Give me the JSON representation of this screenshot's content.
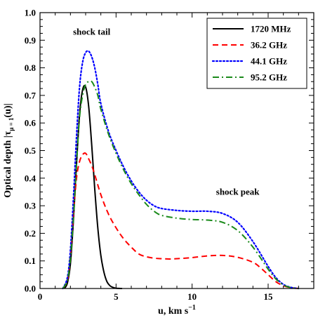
{
  "chart_data": {
    "type": "line",
    "xlabel": "u, km s",
    "xlabel_sup": "−1",
    "ylabel": "Optical depth |τ",
    "ylabel_sub": "μ = 1",
    "ylabel_tail": "(u)|",
    "xlim": [
      0,
      18
    ],
    "ylim": [
      0,
      1.0
    ],
    "x_ticks": [
      0,
      5,
      10,
      15
    ],
    "x_tick_labels": [
      "0",
      "5",
      "10",
      "15"
    ],
    "y_ticks": [
      0.0,
      0.1,
      0.2,
      0.3,
      0.4,
      0.5,
      0.6,
      0.7,
      0.8,
      0.9,
      1.0
    ],
    "y_tick_labels": [
      "0.0",
      "0.1",
      "0.2",
      "0.3",
      "0.4",
      "0.5",
      "0.6",
      "0.7",
      "0.8",
      "0.9",
      "1.0"
    ],
    "grid": false,
    "legend_position": "top-right",
    "annotations": [
      {
        "text": "shock tail",
        "x": 3.4,
        "y": 0.93
      },
      {
        "text": "shock peak",
        "x": 13.0,
        "y": 0.35
      }
    ],
    "series": [
      {
        "name": "1720 MHz",
        "color": "#000000",
        "style": "solid",
        "x": [
          1.6,
          1.8,
          2.0,
          2.2,
          2.4,
          2.6,
          2.8,
          3.0,
          3.2,
          3.4,
          3.6,
          3.8,
          4.0,
          4.2,
          4.4,
          4.6,
          4.8,
          5.0,
          5.4
        ],
        "y": [
          0.0,
          0.02,
          0.09,
          0.25,
          0.45,
          0.63,
          0.72,
          0.73,
          0.66,
          0.52,
          0.36,
          0.22,
          0.12,
          0.06,
          0.025,
          0.01,
          0.004,
          0.001,
          0.0
        ]
      },
      {
        "name": "36.2 GHz",
        "color": "#ff0000",
        "style": "dashed",
        "x": [
          1.5,
          1.8,
          2.0,
          2.2,
          2.4,
          2.6,
          2.8,
          3.0,
          3.2,
          3.5,
          4.0,
          4.5,
          5.0,
          5.5,
          6.0,
          6.5,
          7.0,
          7.5,
          8.0,
          8.5,
          9.0,
          10.0,
          11.0,
          12.0,
          13.0,
          14.0,
          14.5,
          15.0,
          15.5,
          16.0,
          16.5,
          17.0
        ],
        "y": [
          0.0,
          0.03,
          0.12,
          0.27,
          0.4,
          0.46,
          0.485,
          0.49,
          0.47,
          0.43,
          0.34,
          0.27,
          0.22,
          0.18,
          0.15,
          0.125,
          0.115,
          0.11,
          0.108,
          0.107,
          0.108,
          0.112,
          0.118,
          0.12,
          0.113,
          0.095,
          0.075,
          0.05,
          0.025,
          0.01,
          0.003,
          0.0
        ]
      },
      {
        "name": "44.1 GHz",
        "color": "#0000ff",
        "style": "dotted",
        "x": [
          1.5,
          1.8,
          2.0,
          2.2,
          2.4,
          2.6,
          2.8,
          3.0,
          3.2,
          3.4,
          3.6,
          3.8,
          4.0,
          4.5,
          5.0,
          5.5,
          6.0,
          6.5,
          7.0,
          7.5,
          8.0,
          9.0,
          10.0,
          11.0,
          12.0,
          13.0,
          14.0,
          15.0,
          15.5,
          16.0,
          16.5,
          17.0
        ],
        "y": [
          0.0,
          0.04,
          0.14,
          0.33,
          0.55,
          0.73,
          0.82,
          0.855,
          0.86,
          0.84,
          0.8,
          0.74,
          0.67,
          0.57,
          0.5,
          0.44,
          0.39,
          0.35,
          0.32,
          0.3,
          0.29,
          0.283,
          0.28,
          0.28,
          0.272,
          0.24,
          0.17,
          0.08,
          0.04,
          0.015,
          0.004,
          0.0
        ]
      },
      {
        "name": "95.2 GHz",
        "color": "#1a8a1a",
        "style": "dashdot",
        "x": [
          1.5,
          1.8,
          2.0,
          2.2,
          2.4,
          2.6,
          2.8,
          3.0,
          3.2,
          3.4,
          3.6,
          3.8,
          4.0,
          4.5,
          5.0,
          5.5,
          6.0,
          6.5,
          7.0,
          7.5,
          8.0,
          9.0,
          10.0,
          11.0,
          12.0,
          13.0,
          14.0,
          15.0,
          15.5,
          16.0,
          16.5,
          17.0
        ],
        "y": [
          0.0,
          0.03,
          0.11,
          0.26,
          0.45,
          0.62,
          0.7,
          0.74,
          0.75,
          0.75,
          0.73,
          0.7,
          0.65,
          0.56,
          0.49,
          0.43,
          0.38,
          0.34,
          0.305,
          0.28,
          0.265,
          0.255,
          0.25,
          0.248,
          0.24,
          0.21,
          0.15,
          0.07,
          0.035,
          0.013,
          0.003,
          0.0
        ]
      }
    ]
  }
}
